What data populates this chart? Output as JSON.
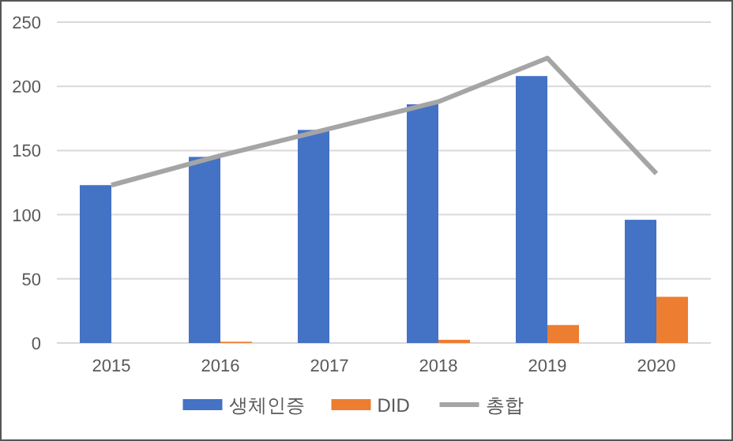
{
  "chart_data": {
    "type": "bar",
    "categories": [
      "2015",
      "2016",
      "2017",
      "2018",
      "2019",
      "2020"
    ],
    "series": [
      {
        "name": "생체인증",
        "color": "#4472c4",
        "values": [
          123,
          145,
          166,
          186,
          208,
          96
        ]
      },
      {
        "name": "DID",
        "color": "#ed7d31",
        "values": [
          0,
          1,
          0,
          2.5,
          14,
          36
        ]
      },
      {
        "name": "총합",
        "type": "line",
        "color": "#a5a5a5",
        "values": [
          123,
          146,
          167,
          188,
          222,
          132
        ]
      }
    ],
    "ylim": [
      0,
      250
    ],
    "yticks": [
      0,
      50,
      100,
      150,
      200,
      250
    ],
    "grid": "y",
    "legend": "bottom"
  }
}
